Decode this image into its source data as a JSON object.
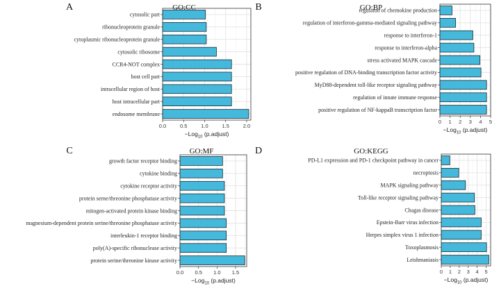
{
  "chart_data": [
    {
      "type": "bar",
      "orientation": "horizontal",
      "letter": "A",
      "title": "GO:CC",
      "xlabel_prefix": "−Log",
      "xlabel_sub": "10",
      "xlabel_suffix": " (p.adjust)",
      "xlim": [
        0,
        2.1
      ],
      "xticks": [
        0.0,
        0.5,
        1.0,
        1.5,
        2.0
      ],
      "tick_labels": [
        "0.0",
        "0.5",
        "1.0",
        "1.5",
        "2.0"
      ],
      "grid": true,
      "categories": [
        "cytosolic part",
        "ribonucleoprotein granule",
        "cytoplasmic ribonucleoprotein granule",
        "cytosolic ribosome",
        "CCR4-NOT complex",
        "host cell part",
        "intracellular region of host",
        "host intracellular part",
        "endosome membrane"
      ],
      "values": [
        1.02,
        1.04,
        1.04,
        1.28,
        1.64,
        1.64,
        1.64,
        1.64,
        2.05
      ]
    },
    {
      "type": "bar",
      "orientation": "horizontal",
      "letter": "B",
      "title": "GO:BP",
      "xlabel_prefix": "−Log",
      "xlabel_sub": "10",
      "xlabel_suffix": " (p.adjust)",
      "xlim": [
        0,
        5
      ],
      "xticks": [
        0,
        1,
        2,
        3,
        4,
        5
      ],
      "tick_labels": [
        "0",
        "1",
        "2",
        "3",
        "4",
        "5"
      ],
      "grid": true,
      "categories": [
        "regulaton of chemokine production",
        "regulation of interferon-gamma-mediated signaling pathway",
        "response to interferon-1",
        "response to interferon-alpha",
        "stress activated MAPK cascade",
        "positive regulation of DNA-binding transcription factor activity",
        "MyD88-dependent toll-like receptor signaling pathway",
        "regulation of innate immune response",
        "positive regulation of NF-kappaB transcription factor"
      ],
      "values": [
        1.2,
        1.55,
        3.25,
        3.35,
        3.95,
        4.05,
        4.6,
        4.6,
        4.6
      ]
    },
    {
      "type": "bar",
      "orientation": "horizontal",
      "letter": "C",
      "title": "GO:MF",
      "xlabel_prefix": "−Log",
      "xlabel_sub": "10",
      "xlabel_suffix": " (p.adjust)",
      "xlim": [
        0,
        1.8
      ],
      "xticks": [
        0.0,
        0.5,
        1.0,
        1.5
      ],
      "tick_labels": [
        "0.0",
        "0.5",
        "1.0",
        "1.5"
      ],
      "grid": true,
      "categories": [
        "growth factor receptor binding",
        "cytokine binding",
        "cytokine receptor activity",
        "protein serne/threonine phosphatase activity",
        "mitogen-activated protein kinase binding",
        "magnesium-dependent protein serine/threonine phosphatase activity",
        "interleukin-1 receptor binding",
        "poly(A)-specific ribonuclease activity",
        "protein serine/threonine kinase activity"
      ],
      "values": [
        1.15,
        1.15,
        1.2,
        1.2,
        1.2,
        1.25,
        1.25,
        1.25,
        1.75
      ]
    },
    {
      "type": "bar",
      "orientation": "horizontal",
      "letter": "D",
      "title": "GO:KEGG",
      "xlabel_prefix": "−Log",
      "xlabel_sub": "10",
      "xlabel_suffix": " (p.adjust)",
      "xlim": [
        0,
        5.5
      ],
      "xticks": [
        0,
        1,
        2,
        3,
        4,
        5
      ],
      "tick_labels": [
        "0",
        "1",
        "2",
        "3",
        "4",
        "5"
      ],
      "grid": true,
      "categories": [
        "PD-L1 expression and PD-1 checkpoint pathway in cancer",
        "necroptosis",
        "MAPK signaling pathway",
        "Toll-like receptor signaling pathway",
        "Chagas disease",
        "Epstein-Barr virus infection",
        "Herpes simplex virus 1 infection",
        "Toxoplasmosis",
        "Leishmaniasis"
      ],
      "values": [
        0.95,
        1.95,
        2.7,
        3.7,
        3.75,
        4.45,
        4.45,
        5.05,
        5.3
      ]
    }
  ],
  "colors": {
    "bar_fill": "#44b9dc",
    "bar_stroke": "#1c2b33"
  }
}
